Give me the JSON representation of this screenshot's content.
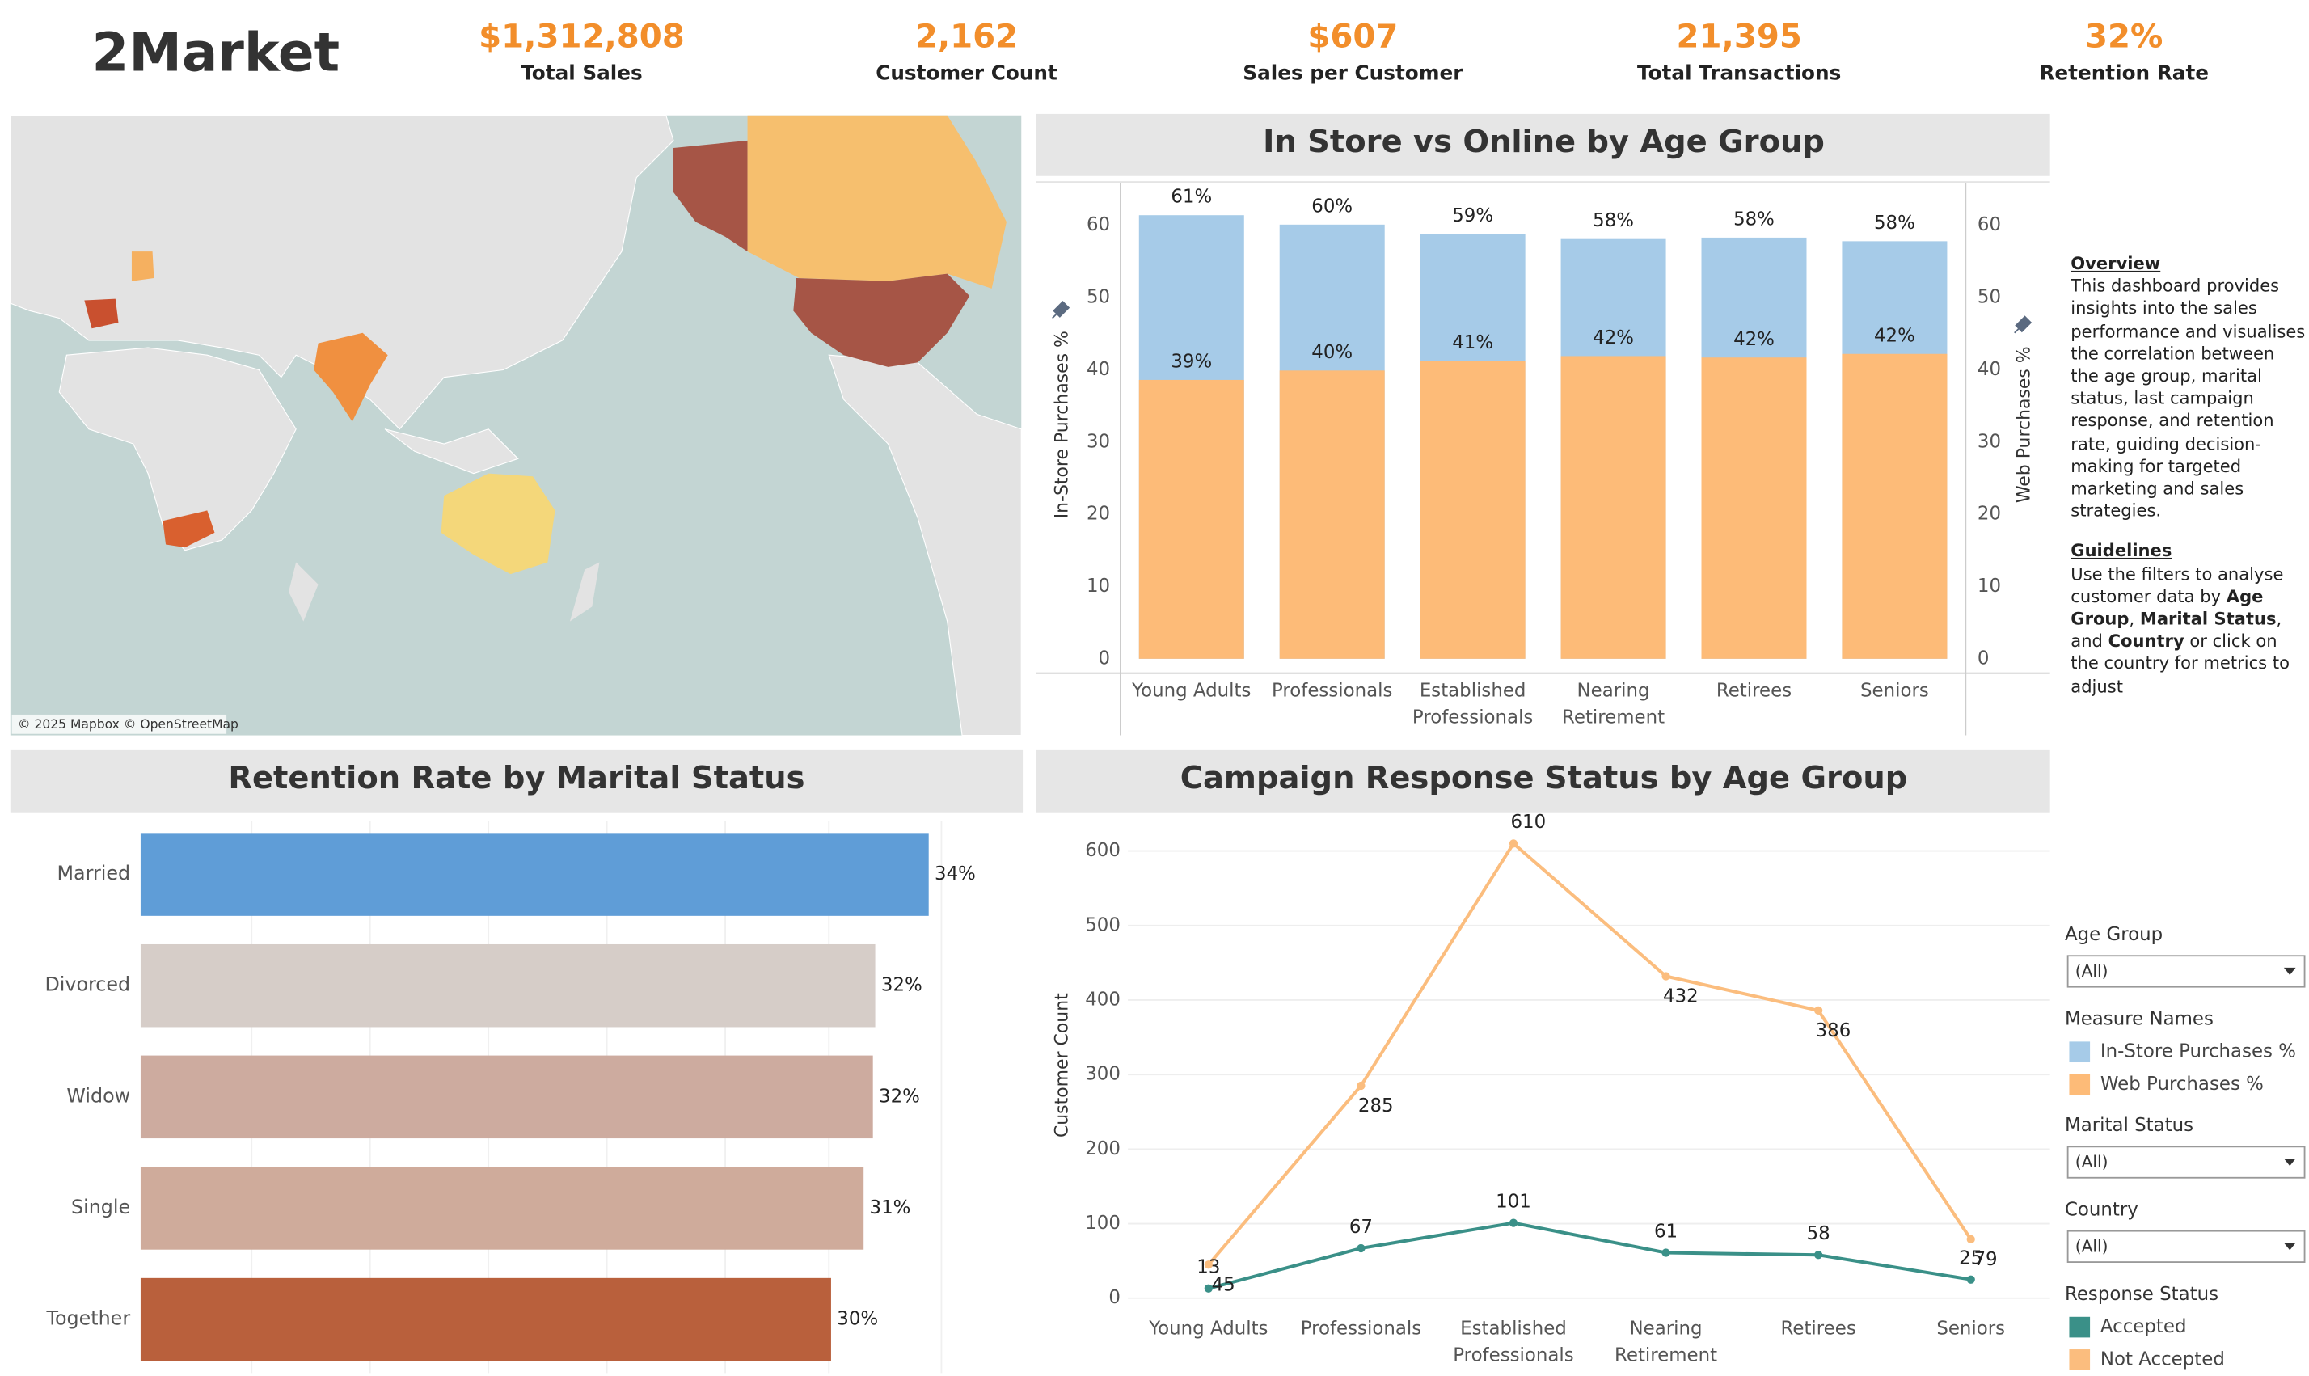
{
  "header": {
    "title": "2Market"
  },
  "kpis": [
    {
      "value": "$1,312,808",
      "label": "Total Sales"
    },
    {
      "value": "2,162",
      "label": "Customer Count"
    },
    {
      "value": "$607",
      "label": "Sales per Customer"
    },
    {
      "value": "21,395",
      "label": "Total Transactions"
    },
    {
      "value": "32%",
      "label": "Retention Rate"
    }
  ],
  "map": {
    "attribution": "© 2025 Mapbox © OpenStreetMap"
  },
  "overview": {
    "heading": "Overview",
    "text": "This dashboard provides insights into the sales performance and visualises the correlation between the age group, marital status, last campaign response, and retention rate, guiding decision-making for targeted marketing and sales strategies."
  },
  "guidelines": {
    "heading": "Guidelines",
    "parts": [
      "Use the filters to analyse customer data by ",
      "Age Group",
      ", ",
      "Marital Status",
      ", and ",
      "Country",
      " or click on the country for metrics to adjust"
    ]
  },
  "filters": [
    {
      "label": "Age Group",
      "value": "(All)"
    },
    {
      "label": "Marital Status",
      "value": "(All)"
    },
    {
      "label": "Country",
      "value": "(All)"
    }
  ],
  "chart_data": [
    {
      "type": "bar",
      "title": "In Store vs Online by Age Group",
      "categories": [
        "Young Adults",
        "Professionals",
        "Established Professionals",
        "Nearing Retirement",
        "Retirees",
        "Seniors"
      ],
      "series": [
        {
          "name": "In-Store Purchases %",
          "color": "#a6cbe8",
          "values": [
            61.4,
            60.1,
            58.8,
            58.1,
            58.3,
            57.8
          ],
          "value_labels": [
            "61%",
            "60%",
            "59%",
            "58%",
            "58%",
            "58%"
          ]
        },
        {
          "name": "Web Purchases %",
          "color": "#fdbb78",
          "axis": "y2",
          "values": [
            38.6,
            39.9,
            41.2,
            41.9,
            41.7,
            42.2
          ],
          "value_labels": [
            "39%",
            "40%",
            "41%",
            "42%",
            "42%",
            "42%"
          ]
        }
      ],
      "y_label": "In-Store Purchases %",
      "y2_label": "Web Purchases %",
      "ylim": [
        -2,
        66
      ],
      "yticks": [
        0,
        10,
        20,
        30,
        40,
        50,
        60
      ],
      "y2lim": [
        -2,
        66
      ],
      "y2ticks": [
        0,
        10,
        20,
        30,
        40,
        50,
        60
      ],
      "legend_title": "Measure Names"
    },
    {
      "type": "hbar",
      "title": "Retention Rate by Marital Status",
      "categories": [
        "Married",
        "Divorced",
        "Widow",
        "Single",
        "Together"
      ],
      "values": [
        33.9,
        31.6,
        31.5,
        31.1,
        29.7
      ],
      "value_labels": [
        "34%",
        "32%",
        "32%",
        "31%",
        "30%"
      ],
      "colors": [
        "#5f9dd7",
        "#d6cdc8",
        "#cdab9f",
        "#cfab9b",
        "#b9603c"
      ],
      "xlim": [
        0,
        34.7
      ]
    },
    {
      "type": "line",
      "title": "Campaign Response Status by Age Group",
      "categories": [
        "Young Adults",
        "Professionals",
        "Established Professionals",
        "Nearing Retirement",
        "Retirees",
        "Seniors"
      ],
      "series": [
        {
          "name": "Accepted",
          "color": "#3a9088",
          "values": [
            13,
            67,
            101,
            61,
            58,
            25
          ]
        },
        {
          "name": "Not Accepted",
          "color": "#fbbd7e",
          "values": [
            45,
            285,
            610,
            432,
            386,
            79
          ]
        }
      ],
      "y_label": "Customer Count",
      "ylim": [
        -25,
        640
      ],
      "yticks": [
        0,
        100,
        200,
        300,
        400,
        500,
        600
      ],
      "grid": true,
      "legend_title": "Response Status"
    }
  ]
}
